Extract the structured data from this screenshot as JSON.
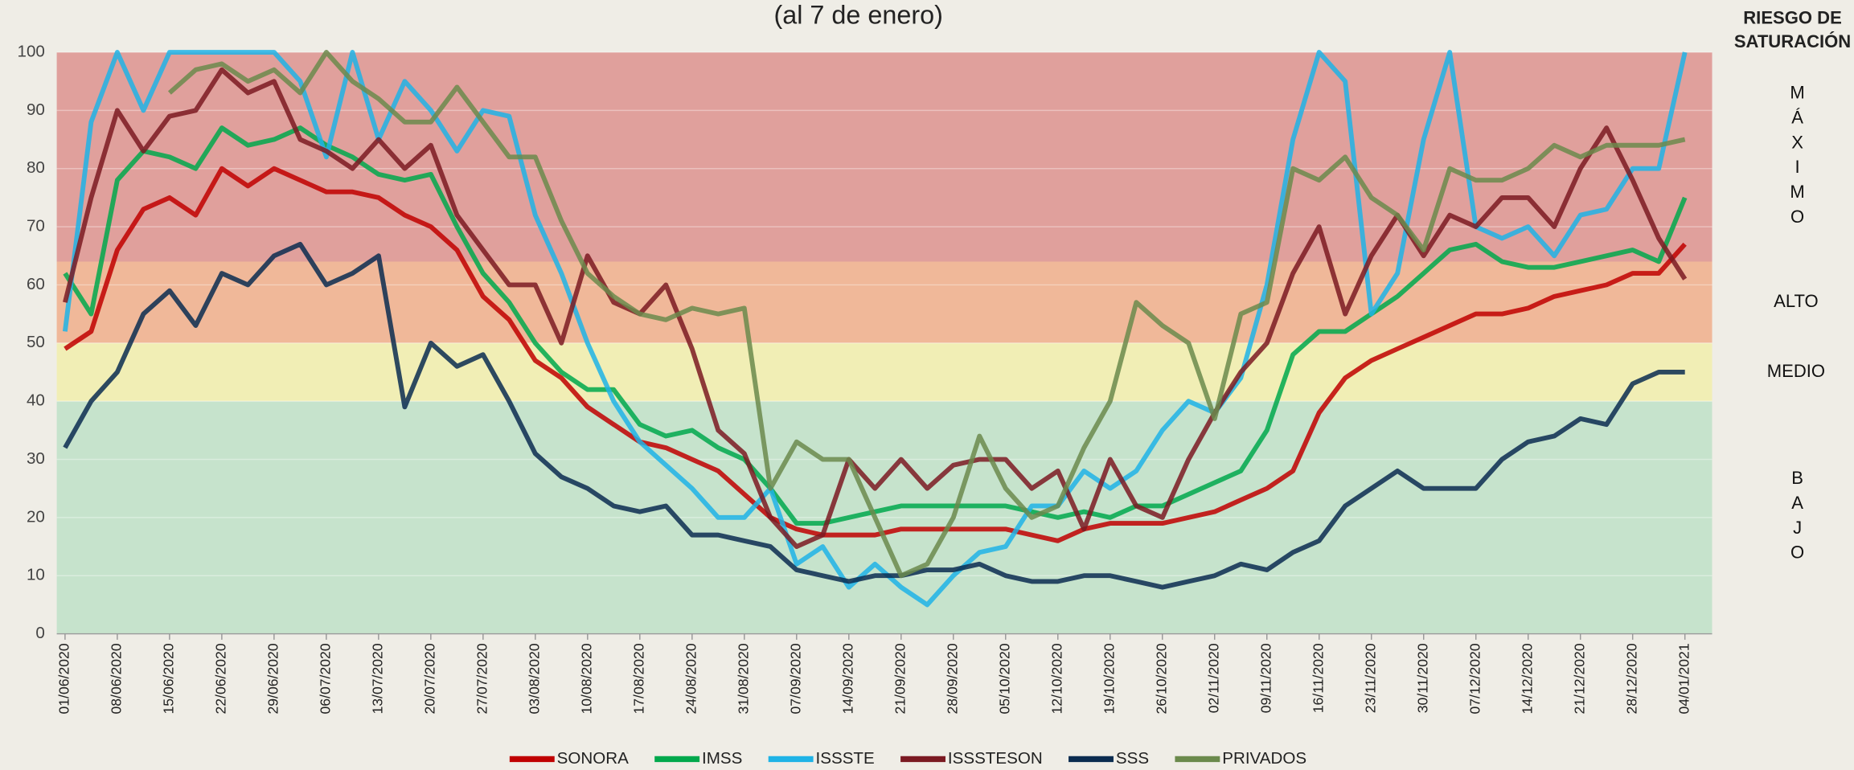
{
  "chart_data": {
    "type": "line",
    "title": "(al 7 de enero)",
    "categories": [
      "01/06/2020",
      null,
      "08/06/2020",
      null,
      "15/06/2020",
      null,
      "22/06/2020",
      null,
      "29/06/2020",
      null,
      "06/07/2020",
      null,
      "13/07/2020",
      null,
      "20/07/2020",
      null,
      "27/07/2020",
      null,
      "03/08/2020",
      null,
      "10/08/2020",
      null,
      "17/08/2020",
      null,
      "24/08/2020",
      null,
      "31/08/2020",
      null,
      "07/09/2020",
      null,
      "14/09/2020",
      null,
      "21/09/2020",
      null,
      "28/09/2020",
      null,
      "05/10/2020",
      null,
      "12/10/2020",
      null,
      "19/10/2020",
      null,
      "26/10/2020",
      null,
      "02/11/2020",
      null,
      "09/11/2020",
      null,
      "16/11/2020",
      null,
      "23/11/2020",
      null,
      "30/11/2020",
      null,
      "07/12/2020",
      null,
      "14/12/2020",
      null,
      "21/12/2020",
      null,
      "28/12/2020",
      null,
      "04/01/2021"
    ],
    "series": [
      {
        "name": "SONORA",
        "color": "#c00000",
        "values": [
          49,
          52,
          66,
          73,
          75,
          72,
          80,
          77,
          80,
          78,
          76,
          76,
          75,
          72,
          70,
          66,
          58,
          54,
          47,
          44,
          39,
          36,
          33,
          32,
          30,
          28,
          24,
          20,
          18,
          17,
          17,
          17,
          18,
          18,
          18,
          18,
          18,
          17,
          16,
          18,
          19,
          19,
          19,
          20,
          21,
          23,
          25,
          28,
          38,
          44,
          47,
          49,
          51,
          53,
          55,
          55,
          56,
          58,
          59,
          60,
          62,
          62,
          67
        ]
      },
      {
        "name": "IMSS",
        "color": "#00a84c",
        "values": [
          62,
          55,
          78,
          83,
          82,
          80,
          87,
          84,
          85,
          87,
          84,
          82,
          79,
          78,
          79,
          70,
          62,
          57,
          50,
          45,
          42,
          42,
          36,
          34,
          35,
          32,
          30,
          25,
          19,
          19,
          20,
          21,
          22,
          22,
          22,
          22,
          22,
          21,
          20,
          21,
          20,
          22,
          22,
          24,
          26,
          28,
          35,
          48,
          52,
          52,
          55,
          58,
          62,
          66,
          67,
          64,
          63,
          63,
          64,
          65,
          66,
          64,
          75
        ]
      },
      {
        "name": "ISSSTE",
        "color": "#1fb3e6",
        "values": [
          52,
          88,
          100,
          90,
          100,
          100,
          100,
          100,
          100,
          95,
          82,
          100,
          85,
          95,
          90,
          83,
          90,
          89,
          72,
          62,
          50,
          40,
          33,
          29,
          25,
          20,
          20,
          25,
          12,
          15,
          8,
          12,
          8,
          5,
          10,
          14,
          15,
          22,
          22,
          28,
          25,
          28,
          35,
          40,
          38,
          44,
          60,
          85,
          100,
          95,
          55,
          62,
          85,
          100,
          70,
          68,
          70,
          65,
          72,
          73,
          80,
          80,
          100
        ]
      },
      {
        "name": "ISSSTESON",
        "color": "#7b1a22",
        "values": [
          57,
          75,
          90,
          83,
          89,
          90,
          97,
          93,
          95,
          85,
          83,
          80,
          85,
          80,
          84,
          72,
          66,
          60,
          60,
          50,
          65,
          57,
          55,
          60,
          49,
          35,
          31,
          20,
          15,
          17,
          30,
          25,
          30,
          25,
          29,
          30,
          30,
          25,
          28,
          18,
          30,
          22,
          20,
          30,
          38,
          45,
          50,
          62,
          70,
          55,
          65,
          72,
          65,
          72,
          70,
          75,
          75,
          70,
          80,
          87,
          78,
          68,
          61
        ]
      },
      {
        "name": "SSS",
        "color": "#0b2c50",
        "values": [
          32,
          40,
          45,
          55,
          59,
          53,
          62,
          60,
          65,
          67,
          60,
          62,
          65,
          39,
          50,
          46,
          48,
          40,
          31,
          27,
          25,
          22,
          21,
          22,
          17,
          17,
          16,
          15,
          11,
          10,
          9,
          10,
          10,
          11,
          11,
          12,
          10,
          9,
          9,
          10,
          10,
          9,
          8,
          9,
          10,
          12,
          11,
          14,
          16,
          22,
          25,
          28,
          25,
          25,
          25,
          30,
          33,
          34,
          37,
          36,
          43,
          45,
          45
        ]
      },
      {
        "name": "PRIVADOS",
        "color": "#6b8a4c",
        "values": [
          null,
          null,
          null,
          null,
          93,
          97,
          98,
          95,
          97,
          93,
          100,
          95,
          92,
          88,
          88,
          94,
          88,
          82,
          82,
          71,
          62,
          58,
          55,
          54,
          56,
          55,
          56,
          25,
          33,
          30,
          30,
          20,
          10,
          12,
          20,
          34,
          25,
          20,
          22,
          32,
          40,
          57,
          53,
          50,
          37,
          55,
          57,
          80,
          78,
          82,
          75,
          72,
          66,
          80,
          78,
          78,
          80,
          84,
          82,
          84,
          84,
          84,
          85
        ]
      }
    ],
    "ylim": [
      0,
      100
    ],
    "yticks": [
      0,
      10,
      20,
      30,
      40,
      50,
      60,
      70,
      80,
      90,
      100
    ],
    "grid": true,
    "risk_title": [
      "RIESGO DE",
      "SATURACIÓN"
    ],
    "bands": [
      {
        "label": "BAJO",
        "from": 0,
        "to": 40,
        "color": "#c6e3cc"
      },
      {
        "label": "MEDIO",
        "from": 40,
        "to": 50,
        "color": "#f1eeb5"
      },
      {
        "label": "ALTO",
        "from": 50,
        "to": 64,
        "color": "#f0b899"
      },
      {
        "label": "MÁXIMO",
        "from": 64,
        "to": 100,
        "color": "#e0a09c"
      }
    ],
    "legend": "bottom"
  }
}
